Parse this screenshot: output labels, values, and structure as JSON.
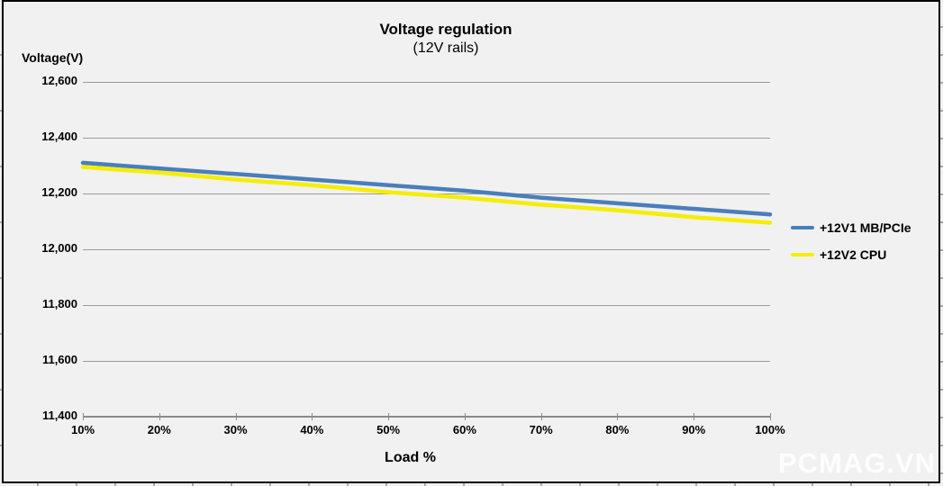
{
  "overlay": {
    "watermark": "PCMAG.VN"
  },
  "chart_data": {
    "type": "line",
    "title": "Voltage regulation",
    "subtitle": "(12V rails)",
    "y_axis_title": "Voltage(V)",
    "x_axis_title": "Load %",
    "x": [
      10,
      20,
      30,
      40,
      50,
      60,
      70,
      80,
      90,
      100
    ],
    "x_tick_labels": [
      "10%",
      "20%",
      "30%",
      "40%",
      "50%",
      "60%",
      "70%",
      "80%",
      "90%",
      "100%"
    ],
    "xlim": [
      10,
      100
    ],
    "y_ticks": [
      11400,
      11600,
      11800,
      12000,
      12200,
      12400,
      12600
    ],
    "y_tick_labels": [
      "11,400",
      "11,600",
      "11,800",
      "12,000",
      "12,200",
      "12,400",
      "12,600"
    ],
    "ylim": [
      11400,
      12600
    ],
    "grid": true,
    "legend_position": "right",
    "series": [
      {
        "name": "+12V1 MB/PCIe",
        "color": "#4a7ebb",
        "values": [
          12310,
          12290,
          12270,
          12250,
          12230,
          12210,
          12185,
          12165,
          12145,
          12125
        ]
      },
      {
        "name": "+12V2 CPU",
        "color": "#f5ee02",
        "values": [
          12295,
          12275,
          12250,
          12230,
          12205,
          12185,
          12160,
          12140,
          12115,
          12095
        ]
      }
    ]
  },
  "colors": {
    "background": "#f1f1f1",
    "frame": "#000000",
    "gridline": "#9c9c9c",
    "axis": "#8a8a8a",
    "text": "#000000",
    "watermark": "#ffffff"
  }
}
